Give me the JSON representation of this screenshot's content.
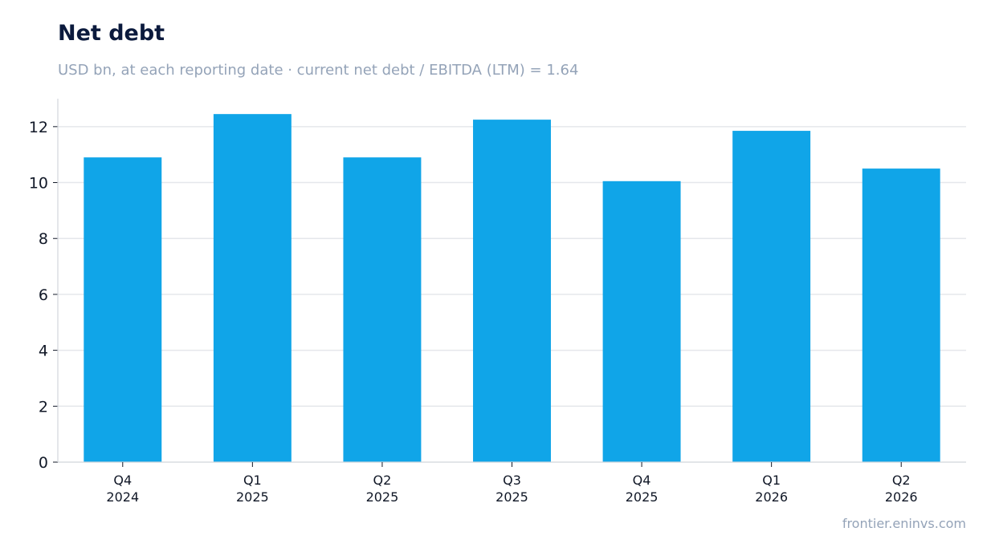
{
  "header": {
    "title": "Net debt",
    "subtitle": "USD bn, at each reporting date · current net debt / EBITDA (LTM) = 1.64"
  },
  "footer": {
    "source": "frontier.eninvs.com"
  },
  "colors": {
    "bar": "#10a5e8",
    "grid": "#e5e7eb",
    "axis": "#d1d5db",
    "title": "#0b1a3d",
    "subtitle": "#94a3b8"
  },
  "chart_data": {
    "type": "bar",
    "title": "Net debt",
    "subtitle": "USD bn, at each reporting date · current net debt / EBITDA (LTM) = 1.64",
    "categories": [
      [
        "Q4",
        "2024"
      ],
      [
        "Q1",
        "2025"
      ],
      [
        "Q2",
        "2025"
      ],
      [
        "Q3",
        "2025"
      ],
      [
        "Q4",
        "2025"
      ],
      [
        "Q1",
        "2026"
      ],
      [
        "Q2",
        "2026"
      ]
    ],
    "values": [
      10.9,
      12.45,
      10.9,
      12.25,
      10.05,
      11.85,
      10.5
    ],
    "xlabel": "",
    "ylabel": "",
    "ylim": [
      0,
      13
    ],
    "yticks": [
      0,
      2,
      4,
      6,
      8,
      10,
      12
    ],
    "grid": true,
    "legend": "none"
  }
}
